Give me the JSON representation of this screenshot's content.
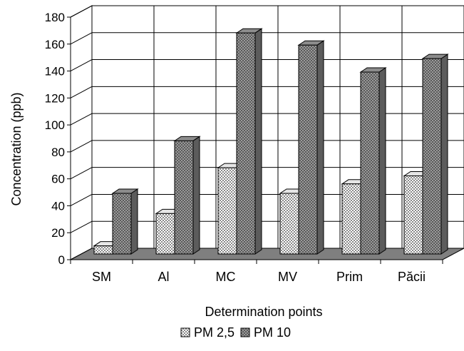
{
  "chart_data": {
    "type": "bar",
    "subtype": "3d-clustered-column",
    "title": "",
    "xlabel": "Determination points",
    "ylabel": "Concentration (ppb)",
    "ylim": [
      0,
      180
    ],
    "yticks": [
      0,
      20,
      40,
      60,
      80,
      100,
      120,
      140,
      160,
      180
    ],
    "categories": [
      "SM",
      "Al",
      "MC",
      "MV",
      "Prim",
      "Păcii"
    ],
    "series": [
      {
        "name": "PM 2,5",
        "values": [
          6,
          30,
          64,
          45,
          52,
          58
        ],
        "pattern": "crosshatch-light"
      },
      {
        "name": "PM 10",
        "values": [
          45,
          84,
          164,
          155,
          135,
          145
        ],
        "pattern": "crosshatch-dark"
      }
    ],
    "grid": true,
    "legend_position": "bottom"
  }
}
